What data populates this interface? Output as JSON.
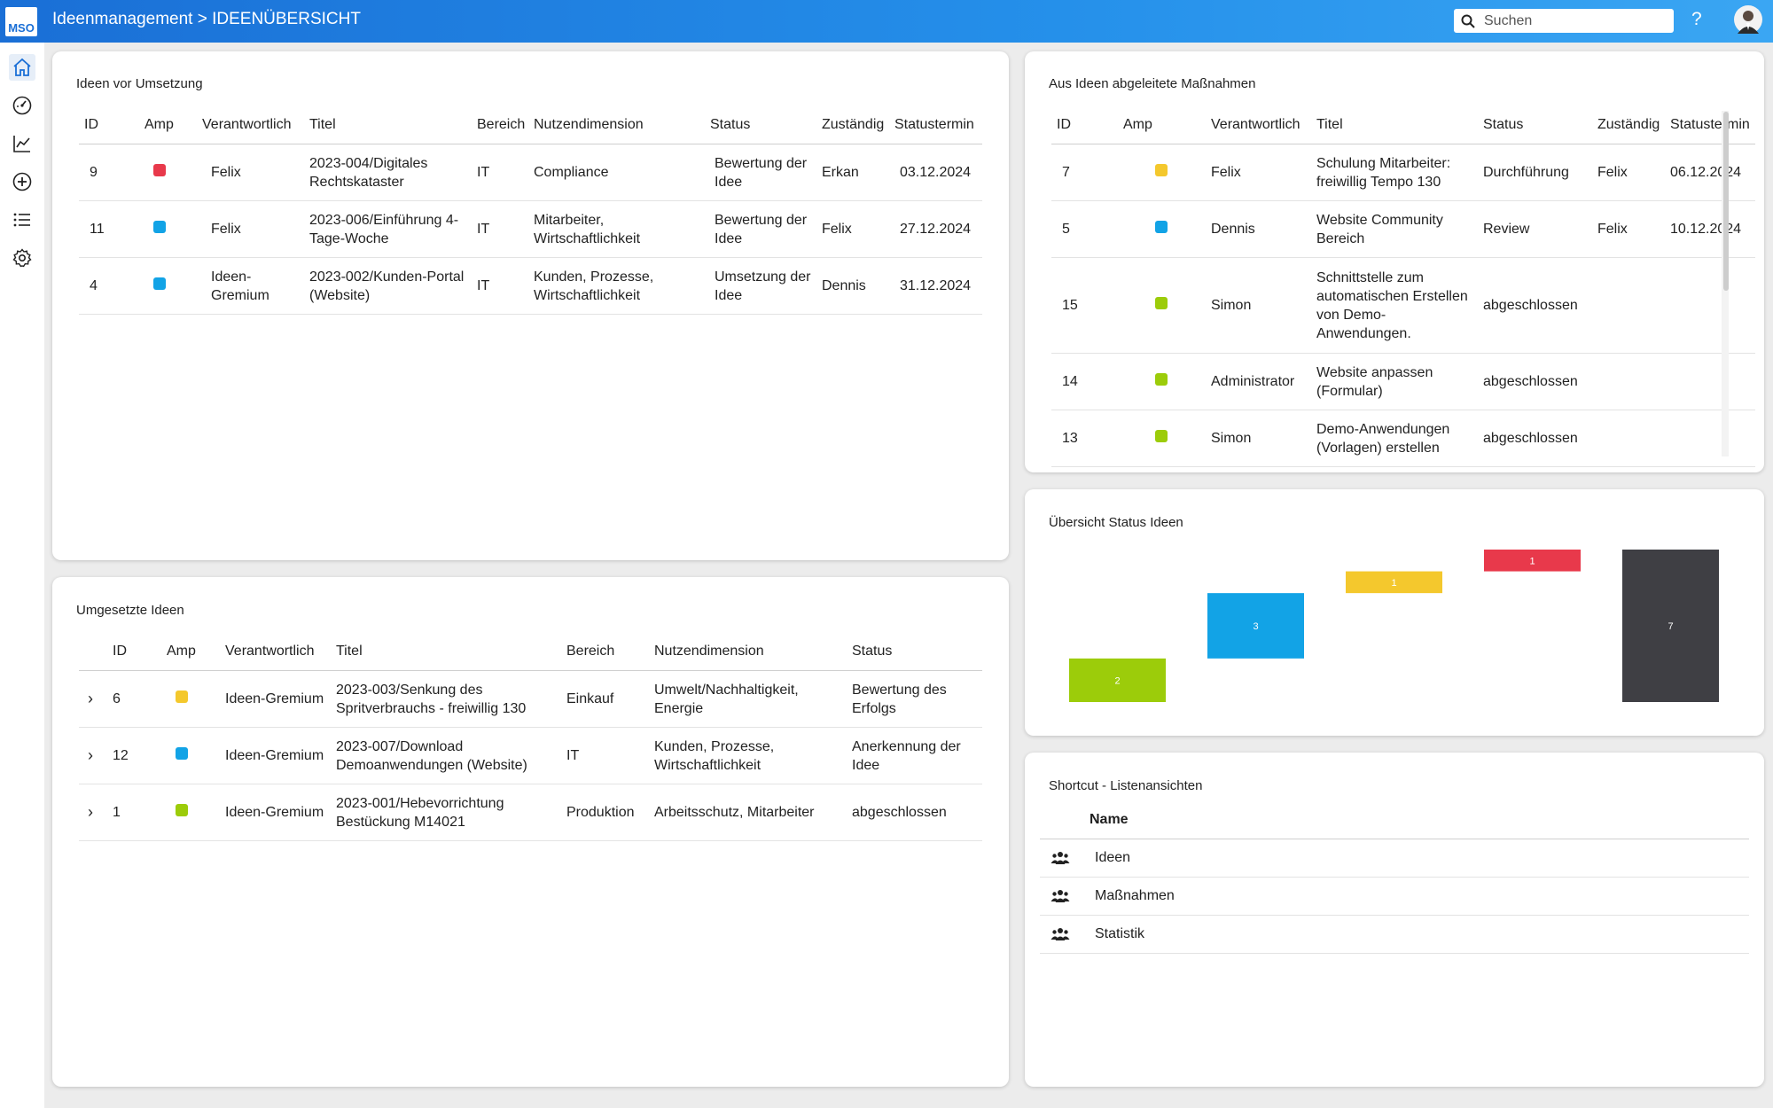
{
  "header": {
    "logo_text": "MSO",
    "title": "Ideenmanagement > IDEENÜBERSICHT",
    "search_placeholder": "Suchen",
    "help_label": "?"
  },
  "sidebar": {
    "items": [
      {
        "name": "home-icon",
        "active": true
      },
      {
        "name": "dashboard-icon"
      },
      {
        "name": "chart-line-icon"
      },
      {
        "name": "add-circle-icon"
      },
      {
        "name": "list-icon"
      },
      {
        "name": "settings-icon"
      }
    ]
  },
  "colors": {
    "red": "#e8394b",
    "blue": "#12a3e6",
    "yellow": "#f4c82d",
    "green": "#9ccc0a",
    "dark": "#3f3f44",
    "accent": "#1a6fd6"
  },
  "ideen_vor_umsetzung": {
    "title": "Ideen vor Umsetzung",
    "columns": [
      "ID",
      "Amp",
      "Verantwortlich",
      "Titel",
      "Bereich",
      "Nutzendimension",
      "Status",
      "Zuständig",
      "Statustermin"
    ],
    "rows": [
      {
        "id": "9",
        "amp": "red",
        "verantwortlich": "Felix",
        "titel": "2023-004/Digitales Rechtskataster",
        "bereich": "IT",
        "nutzen": "Compliance",
        "status": "Bewertung der Idee",
        "zustaendig": "Erkan",
        "termin": "03.12.2024"
      },
      {
        "id": "11",
        "amp": "blue",
        "verantwortlich": "Felix",
        "titel": "2023-006/Einführung 4-Tage-Woche",
        "bereich": "IT",
        "nutzen": "Mitarbeiter, Wirtschaftlichkeit",
        "status": "Bewertung der Idee",
        "zustaendig": "Felix",
        "termin": "27.12.2024"
      },
      {
        "id": "4",
        "amp": "blue",
        "verantwortlich": "Ideen-Gremium",
        "titel": "2023-002/Kunden-Portal (Website)",
        "bereich": "IT",
        "nutzen": "Kunden, Prozesse, Wirtschaftlichkeit",
        "status": "Umsetzung der Idee",
        "zustaendig": "Dennis",
        "termin": "31.12.2024"
      }
    ]
  },
  "massnahmen": {
    "title": "Aus Ideen abgeleitete Maßnahmen",
    "columns": [
      "ID",
      "Amp",
      "Verantwortlich",
      "Titel",
      "Status",
      "Zuständig",
      "Statustermin"
    ],
    "rows": [
      {
        "id": "7",
        "amp": "yellow",
        "verantwortlich": "Felix",
        "titel": "Schulung Mitarbeiter: freiwillig Tempo 130",
        "status": "Durchführung",
        "zustaendig": "Felix",
        "termin": "06.12.2024"
      },
      {
        "id": "5",
        "amp": "blue",
        "verantwortlich": "Dennis",
        "titel": "Website Community Bereich",
        "status": "Review",
        "zustaendig": "Felix",
        "termin": "10.12.2024"
      },
      {
        "id": "15",
        "amp": "green",
        "verantwortlich": "Simon",
        "titel": "Schnittstelle zum automatischen Erstellen von Demo-Anwendungen.",
        "status": "abgeschlossen",
        "zustaendig": "",
        "termin": ""
      },
      {
        "id": "14",
        "amp": "green",
        "verantwortlich": "Administrator",
        "titel": "Website anpassen (Formular)",
        "status": "abgeschlossen",
        "zustaendig": "",
        "termin": ""
      },
      {
        "id": "13",
        "amp": "green",
        "verantwortlich": "Simon",
        "titel": "Demo-Anwendungen (Vorlagen) erstellen",
        "status": "abgeschlossen",
        "zustaendig": "",
        "termin": ""
      }
    ]
  },
  "umgesetzte_ideen": {
    "title": "Umgesetzte Ideen",
    "columns": [
      "ID",
      "Amp",
      "Verantwortlich",
      "Titel",
      "Bereich",
      "Nutzendimension",
      "Status"
    ],
    "rows": [
      {
        "id": "6",
        "amp": "yellow",
        "verantwortlich": "Ideen-Gremium",
        "titel": "2023-003/Senkung des Spritverbrauchs - freiwillig 130",
        "bereich": "Einkauf",
        "nutzen": "Umwelt/Nachhaltigkeit, Energie",
        "status": "Bewertung des Erfolgs"
      },
      {
        "id": "12",
        "amp": "blue",
        "verantwortlich": "Ideen-Gremium",
        "titel": "2023-007/Download Demoanwendungen (Website)",
        "bereich": "IT",
        "nutzen": "Kunden, Prozesse, Wirtschaftlichkeit",
        "status": "Anerkennung der Idee"
      },
      {
        "id": "1",
        "amp": "green",
        "verantwortlich": "Ideen-Gremium",
        "titel": "2023-001/Hebevorrichtung Bestückung M14021",
        "bereich": "Produktion",
        "nutzen": "Arbeitsschutz, Mitarbeiter",
        "status": "abgeschlossen"
      }
    ]
  },
  "status_chart": {
    "title": "Übersicht Status Ideen"
  },
  "chart_data": {
    "type": "bar",
    "title": "Übersicht Status Ideen",
    "chart_form": "waterfall",
    "values": [
      2,
      3,
      1,
      1,
      7
    ],
    "colors": [
      "#9ccc0a",
      "#12a3e6",
      "#f4c82d",
      "#e8394b",
      "#3f3f44"
    ],
    "last_is_total": true,
    "ylim": [
      0,
      7
    ],
    "grid": false
  },
  "shortcut": {
    "title": "Shortcut - Listenansichten",
    "column": "Name",
    "items": [
      "Ideen",
      "Maßnahmen",
      "Statistik"
    ]
  }
}
